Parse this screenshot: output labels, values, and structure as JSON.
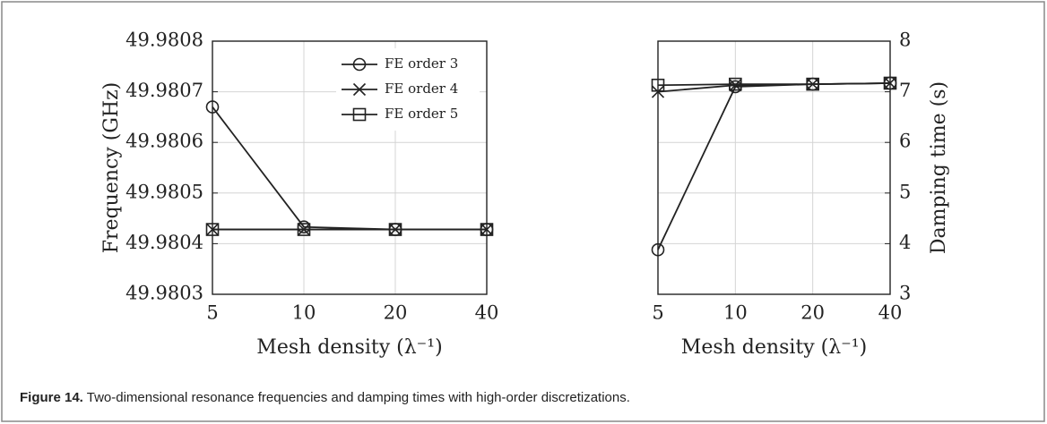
{
  "chart_data": [
    {
      "type": "line",
      "categories": [
        "5",
        "10",
        "20",
        "40"
      ],
      "x_label": "Mesh density (λ⁻¹)",
      "y_label": "Frequency (GHz)",
      "ylim": [
        49.9803,
        49.9808
      ],
      "yticks": [
        49.9803,
        49.9804,
        49.9805,
        49.9806,
        49.9807,
        49.9808
      ],
      "grid": true,
      "legend": "upper right",
      "series": [
        {
          "name": "FE order 3",
          "color": "#222222",
          "marker": "circle",
          "values": [
            49.98067,
            49.980433,
            49.980428,
            49.980428
          ]
        },
        {
          "name": "FE order 4",
          "color": "#222222",
          "marker": "x",
          "values": [
            49.980428,
            49.980428,
            49.980428,
            49.980428
          ]
        },
        {
          "name": "FE order 5",
          "color": "#222222",
          "marker": "square",
          "values": [
            49.980428,
            49.980428,
            49.980428,
            49.980428
          ]
        }
      ]
    },
    {
      "type": "line",
      "categories": [
        "5",
        "10",
        "20",
        "40"
      ],
      "x_label": "Mesh density (λ⁻¹)",
      "y2_label": "Damping time (s)",
      "y2lim": [
        3,
        8
      ],
      "y2ticks": [
        3,
        4,
        5,
        6,
        7,
        8
      ],
      "grid": true,
      "series": [
        {
          "color": "#222222",
          "marker": "circle",
          "axis": "y2",
          "values": [
            3.88,
            7.1,
            7.15,
            7.17
          ]
        },
        {
          "color": "#222222",
          "marker": "x",
          "axis": "y2",
          "values": [
            7.0,
            7.13,
            7.15,
            7.17
          ]
        },
        {
          "color": "#222222",
          "marker": "square",
          "axis": "y2",
          "values": [
            7.13,
            7.15,
            7.15,
            7.17
          ]
        }
      ]
    }
  ],
  "caption": {
    "label": "Figure 14.",
    "text": " Two-dimensional resonance frequencies and damping times with high-order discretizations."
  }
}
